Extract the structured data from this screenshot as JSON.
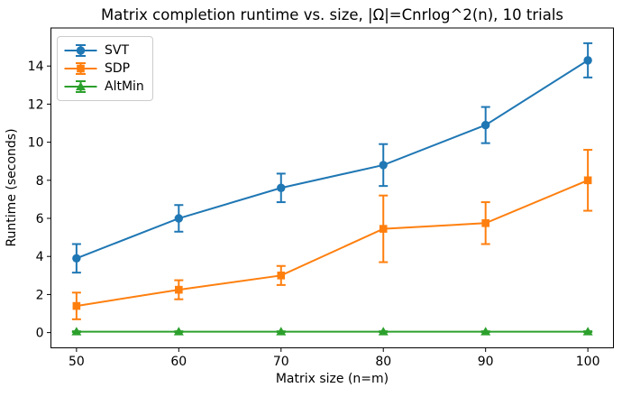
{
  "chart_data": {
    "type": "line",
    "title": "Matrix completion runtime vs. size, |Ω|=Cnrlog^2(n), 10 trials",
    "xlabel": "Matrix size (n=m)",
    "ylabel": "Runtime (seconds)",
    "x": [
      50,
      60,
      70,
      80,
      90,
      100
    ],
    "xticks": [
      50,
      60,
      70,
      80,
      90,
      100
    ],
    "yticks": [
      0,
      2,
      4,
      6,
      8,
      10,
      12,
      14
    ],
    "xlim": [
      47.5,
      102.5
    ],
    "ylim": [
      -0.8,
      16.0
    ],
    "grid": false,
    "legend_position": "upper-left",
    "error_bars": true,
    "trials": "10 trials",
    "series": [
      {
        "name": "SVT",
        "color": "#1f77b4",
        "marker": "circle",
        "values": [
          3.9,
          6.0,
          7.6,
          8.8,
          10.9,
          14.3
        ],
        "yerr": [
          0.75,
          0.7,
          0.75,
          1.1,
          0.95,
          0.9
        ]
      },
      {
        "name": "SDP",
        "color": "#ff7f0e",
        "marker": "square",
        "values": [
          1.4,
          2.25,
          3.0,
          5.45,
          5.75,
          8.0
        ],
        "yerr": [
          0.7,
          0.5,
          0.5,
          1.75,
          1.1,
          1.6
        ]
      },
      {
        "name": "AltMin",
        "color": "#2ca02c",
        "marker": "triangle",
        "values": [
          0.05,
          0.05,
          0.05,
          0.05,
          0.05,
          0.05
        ],
        "yerr": [
          0.02,
          0.02,
          0.02,
          0.02,
          0.02,
          0.02
        ]
      }
    ],
    "axis_color": "#000000"
  }
}
